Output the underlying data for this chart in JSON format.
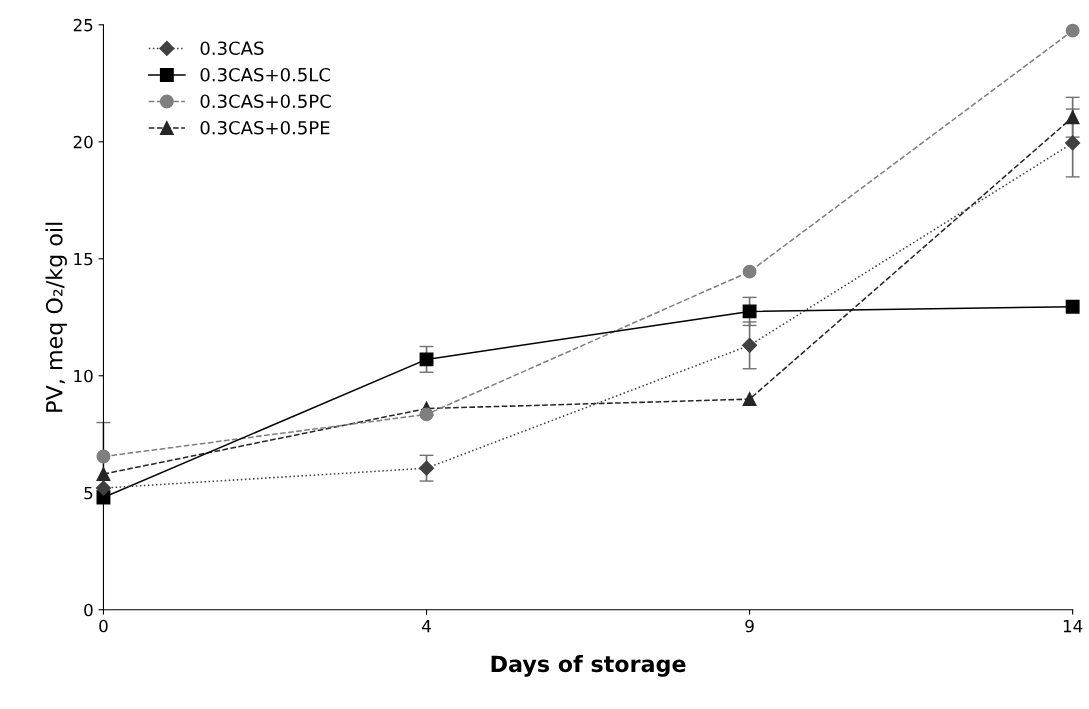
{
  "chart_data": {
    "type": "line",
    "xlabel": "Days of storage",
    "ylabel": "PV, meq O₂/kg oil",
    "categories": [
      "0",
      "4",
      "9",
      "14"
    ],
    "ylim": [
      0,
      25
    ],
    "yticks": [
      0,
      5,
      10,
      15,
      20,
      25
    ],
    "grid": false,
    "legend": "top left",
    "series": [
      {
        "name": "0.3CAS",
        "color": "#404040",
        "marker": "diamond",
        "line_style": "dotted",
        "values": [
          5.2,
          6.05,
          11.3,
          19.95
        ],
        "errors": [
          null,
          0.55,
          1.0,
          1.45
        ]
      },
      {
        "name": "0.3CAS+0.5LC",
        "color": "#000000",
        "marker": "square",
        "line_style": "solid",
        "values": [
          4.8,
          10.7,
          12.75,
          12.95
        ],
        "errors": [
          null,
          0.55,
          0.6,
          null
        ]
      },
      {
        "name": "0.3CAS+0.5PC",
        "color": "#7f7f7f",
        "marker": "circle",
        "line_style": "dashed",
        "values": [
          6.55,
          8.35,
          14.45,
          24.75
        ],
        "errors": [
          1.45,
          null,
          null,
          null
        ]
      },
      {
        "name": "0.3CAS+0.5PE",
        "color": "#262626",
        "marker": "triangle",
        "line_style": "dashed",
        "values": [
          5.8,
          8.6,
          9.0,
          21.05
        ],
        "errors": [
          null,
          null,
          null,
          0.85
        ]
      }
    ]
  }
}
